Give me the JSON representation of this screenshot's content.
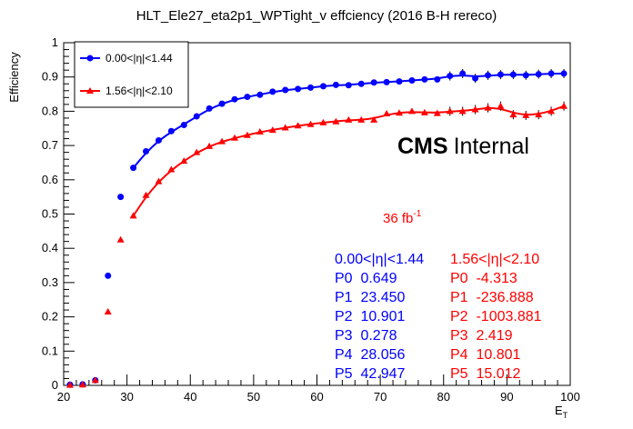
{
  "chart_data": {
    "type": "scatter",
    "title": "HLT_Ele27_eta2p1_WPTight_v effciency (2016 B-H rereco)",
    "xlabel": "E",
    "xlabel_sub": "T",
    "ylabel": "Efficiency",
    "xlim": [
      20,
      100
    ],
    "ylim": [
      0,
      1
    ],
    "x_ticks": [
      "20",
      "30",
      "40",
      "50",
      "60",
      "70",
      "80",
      "90",
      "100"
    ],
    "y_ticks": [
      "0",
      "0.1",
      "0.2",
      "0.3",
      "0.4",
      "0.5",
      "0.6",
      "0.7",
      "0.8",
      "0.9",
      "1"
    ],
    "grid": false,
    "legend_position": "top-left",
    "series": [
      {
        "name": "0.00<|η|<1.44",
        "color": "#0000ff",
        "marker": "circle",
        "x": [
          21,
          23,
          25,
          27,
          29,
          31,
          33,
          35,
          37,
          39,
          41,
          43,
          45,
          47,
          49,
          51,
          53,
          55,
          57,
          59,
          61,
          63,
          65,
          67,
          69,
          71,
          73,
          75,
          77,
          79,
          81,
          83,
          85,
          87,
          89,
          91,
          93,
          95,
          97,
          99
        ],
        "y": [
          0.002,
          0.003,
          0.015,
          0.32,
          0.55,
          0.635,
          0.683,
          0.715,
          0.742,
          0.76,
          0.785,
          0.808,
          0.822,
          0.835,
          0.842,
          0.848,
          0.857,
          0.862,
          0.865,
          0.869,
          0.873,
          0.877,
          0.876,
          0.88,
          0.884,
          0.885,
          0.887,
          0.89,
          0.893,
          0.893,
          0.903,
          0.91,
          0.896,
          0.905,
          0.907,
          0.907,
          0.905,
          0.908,
          0.91,
          0.91
        ]
      },
      {
        "name": "1.56<|η|<2.10",
        "color": "#ff0000",
        "marker": "triangle",
        "x": [
          21,
          23,
          25,
          27,
          29,
          31,
          33,
          35,
          37,
          39,
          41,
          43,
          45,
          47,
          49,
          51,
          53,
          55,
          57,
          59,
          61,
          63,
          65,
          67,
          69,
          71,
          73,
          75,
          77,
          79,
          81,
          83,
          85,
          87,
          89,
          91,
          93,
          95,
          97,
          99
        ],
        "y": [
          0.001,
          0.002,
          0.015,
          0.215,
          0.425,
          0.495,
          0.555,
          0.595,
          0.63,
          0.655,
          0.68,
          0.698,
          0.712,
          0.722,
          0.73,
          0.74,
          0.745,
          0.752,
          0.758,
          0.762,
          0.767,
          0.77,
          0.775,
          0.775,
          0.775,
          0.793,
          0.795,
          0.8,
          0.796,
          0.794,
          0.8,
          0.8,
          0.805,
          0.81,
          0.815,
          0.79,
          0.788,
          0.79,
          0.8,
          0.815
        ]
      }
    ],
    "annotations": {
      "cms_bold": "CMS",
      "cms_rest": "Internal",
      "lumi": "36 fb",
      "lumi_sup": "-1"
    },
    "fit_params": {
      "blue": {
        "header": "0.00<|η|<1.44",
        "rows": [
          "P0  0.649",
          "P1  23.450",
          "P2  10.901",
          "P3  0.278",
          "P4  28.056",
          "P5  42.947"
        ]
      },
      "red": {
        "header": "1.56<|η|<2.10",
        "rows": [
          "P0  -4.313",
          "P1  -236.888",
          "P2  -1003.881",
          "P3  2.419",
          "P4  10.801",
          "P5  15.012"
        ]
      }
    }
  }
}
